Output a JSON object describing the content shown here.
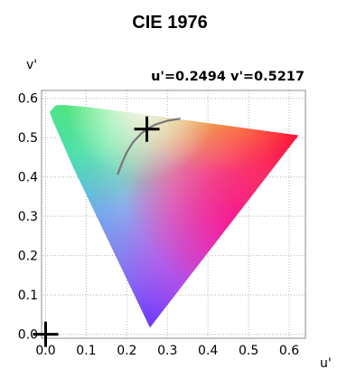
{
  "chart_data": {
    "type": "scatter",
    "title": "CIE 1976",
    "xlabel": "u'",
    "ylabel": "v'",
    "xlim": [
      -0.01,
      0.64
    ],
    "ylim": [
      -0.01,
      0.62
    ],
    "xticks": [
      "0.0",
      "0.1",
      "0.2",
      "0.3",
      "0.4",
      "0.5",
      "0.6"
    ],
    "yticks": [
      "0.0",
      "0.1",
      "0.2",
      "0.3",
      "0.4",
      "0.5",
      "0.6"
    ],
    "grid": true,
    "readout": "u'=0.2494 v'=0.5217",
    "locus_outline": [
      {
        "x": 0.257,
        "y": 0.017
      },
      {
        "x": 0.07,
        "y": 0.42
      },
      {
        "x": 0.019,
        "y": 0.54
      },
      {
        "x": 0.01,
        "y": 0.565
      },
      {
        "x": 0.025,
        "y": 0.582
      },
      {
        "x": 0.045,
        "y": 0.583
      },
      {
        "x": 0.1,
        "y": 0.578
      },
      {
        "x": 0.2,
        "y": 0.565
      },
      {
        "x": 0.32,
        "y": 0.548
      },
      {
        "x": 0.45,
        "y": 0.53
      },
      {
        "x": 0.623,
        "y": 0.506
      }
    ],
    "planckian_locus": [
      {
        "x": 0.178,
        "y": 0.408
      },
      {
        "x": 0.19,
        "y": 0.44
      },
      {
        "x": 0.2,
        "y": 0.463
      },
      {
        "x": 0.215,
        "y": 0.488
      },
      {
        "x": 0.235,
        "y": 0.51
      },
      {
        "x": 0.2494,
        "y": 0.5217
      },
      {
        "x": 0.27,
        "y": 0.533
      },
      {
        "x": 0.3,
        "y": 0.543
      },
      {
        "x": 0.33,
        "y": 0.548
      }
    ],
    "markers": [
      {
        "x": 0.2494,
        "y": 0.5217
      },
      {
        "x": 0.0,
        "y": 0.0
      }
    ]
  }
}
